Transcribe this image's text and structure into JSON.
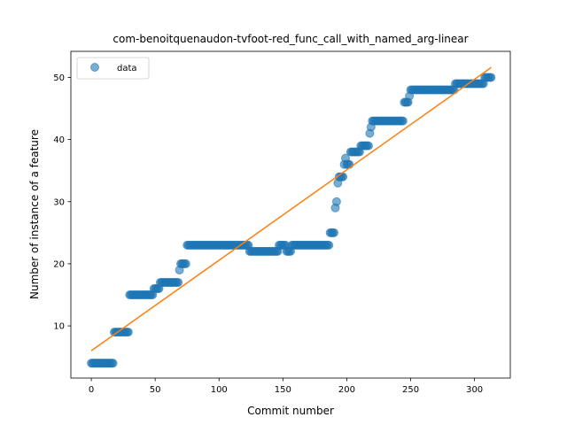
{
  "chart_data": {
    "type": "scatter",
    "title": "com-benoitquenaudon-tvfoot-red_func_call_with_named_arg-linear",
    "xlabel": "Commit number",
    "ylabel": "Number of instance of a feature",
    "xlim": [
      -16,
      328
    ],
    "ylim": [
      1.6,
      54.2
    ],
    "xticks": [
      0,
      50,
      100,
      150,
      200,
      250,
      300
    ],
    "yticks": [
      10,
      20,
      30,
      40,
      50
    ],
    "legend": {
      "position": "top-left",
      "entries": [
        "data"
      ]
    },
    "grid": false,
    "colors": {
      "data": "#1f77b4",
      "fit": "#ff7f0e"
    },
    "steps": [
      [
        0,
        17,
        4
      ],
      [
        18,
        29,
        9
      ],
      [
        30,
        48,
        15
      ],
      [
        49,
        53,
        16
      ],
      [
        54,
        68,
        17
      ],
      [
        69,
        69,
        19
      ],
      [
        70,
        74,
        20
      ],
      [
        75,
        123,
        23
      ],
      [
        124,
        146,
        22
      ],
      [
        147,
        152,
        23
      ],
      [
        153,
        156,
        22
      ],
      [
        157,
        186,
        23
      ],
      [
        187,
        190,
        25
      ],
      [
        191,
        191,
        29
      ],
      [
        192,
        192,
        30
      ],
      [
        193,
        193,
        33
      ],
      [
        194,
        197,
        34
      ],
      [
        198,
        198,
        36
      ],
      [
        199,
        199,
        37
      ],
      [
        200,
        202,
        36
      ],
      [
        203,
        210,
        38
      ],
      [
        211,
        217,
        39
      ],
      [
        218,
        218,
        41
      ],
      [
        219,
        219,
        42
      ],
      [
        220,
        244,
        43
      ],
      [
        245,
        248,
        46
      ],
      [
        249,
        249,
        47
      ],
      [
        250,
        284,
        48
      ],
      [
        285,
        307,
        49
      ],
      [
        308,
        313,
        50
      ]
    ],
    "fit": {
      "x": [
        0,
        313
      ],
      "y": [
        6,
        51.6
      ]
    }
  }
}
